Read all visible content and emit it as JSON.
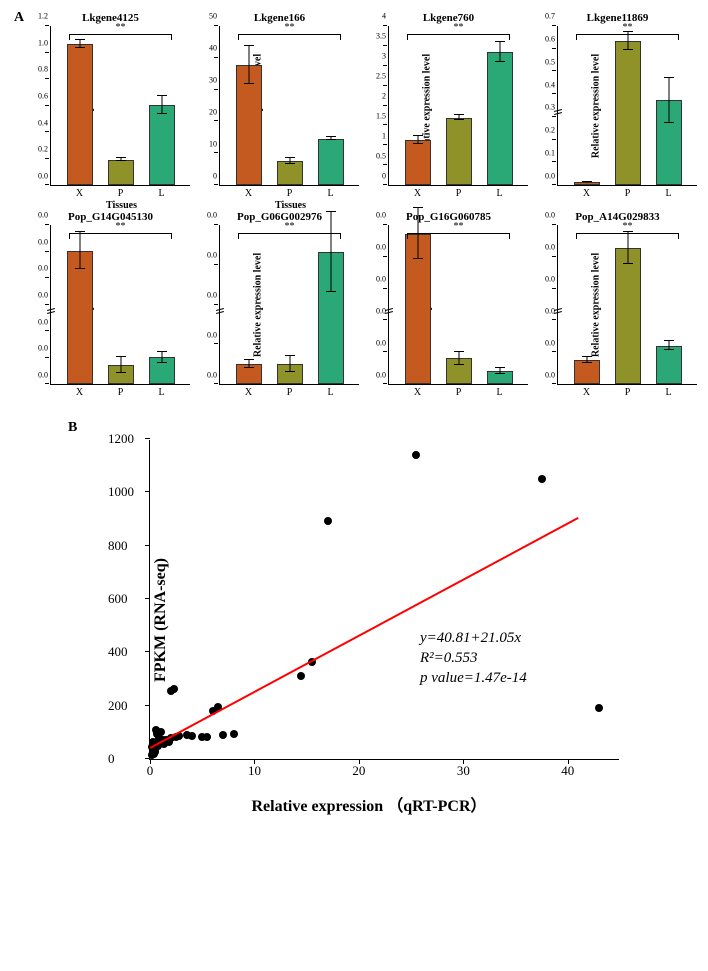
{
  "panelA": {
    "label": "A",
    "ylabel": "Relative expression level",
    "xlabel": "Tissues",
    "categories": [
      "X",
      "P",
      "L"
    ],
    "colors": {
      "X": "#c45a1f",
      "P": "#8f9228",
      "L": "#2aa876"
    },
    "sig_marker": "**",
    "charts": [
      {
        "title": "Lkgene4125",
        "vals": [
          1.06,
          0.19,
          0.6
        ],
        "errs": [
          0.03,
          0.01,
          0.07
        ],
        "ymax": 1.2,
        "ystep": 0.2,
        "show_xlabel": true
      },
      {
        "title": "Lkgene166",
        "vals": [
          37.5,
          7.5,
          14.5
        ],
        "errs": [
          6.0,
          0.8,
          0.5
        ],
        "ymax": 50,
        "ystep": 10,
        "show_xlabel": true
      },
      {
        "title": "Lkgene760",
        "vals": [
          1.12,
          1.68,
          3.32
        ],
        "errs": [
          0.1,
          0.06,
          0.25
        ],
        "ymax": 4.0,
        "ystep": 0.5,
        "show_xlabel": false
      },
      {
        "title": "Lkgene11869",
        "vals": [
          0.014,
          0.63,
          0.37
        ],
        "errs": [
          0.001,
          0.04,
          0.1
        ],
        "ymax": 0.7,
        "ystep": 0.1,
        "show_xlabel": false,
        "broken": true
      },
      {
        "title": "Pop_G14G045130",
        "vals": [
          0.0005,
          7e-05,
          0.0001
        ],
        "errs": [
          7e-05,
          3e-05,
          2e-05
        ],
        "ymax": 0.0006,
        "ystep": 0.0001,
        "show_xlabel": false,
        "broken": true
      },
      {
        "title": "Pop_G06G002976",
        "vals": [
          5e-05,
          5e-05,
          0.00033
        ],
        "errs": [
          1e-05,
          2e-05,
          0.0001
        ],
        "ymax": 0.0004,
        "ystep": 0.0001,
        "show_xlabel": false,
        "broken": true
      },
      {
        "title": "Pop_G16G060785",
        "vals": [
          0.00047,
          8e-05,
          4e-05
        ],
        "errs": [
          8e-05,
          2e-05,
          1e-05
        ],
        "ymax": 0.0005,
        "ystep": 0.0001,
        "show_xlabel": false,
        "broken": true
      },
      {
        "title": "Pop_A14G029833",
        "vals": [
          0.00015,
          0.00085,
          0.00024
        ],
        "errs": [
          2e-05,
          0.0001,
          3e-05
        ],
        "ymax": 0.001,
        "ystep": 0.0002,
        "show_xlabel": false,
        "broken": true
      }
    ]
  },
  "panelB": {
    "label": "B",
    "xlabel": "Relative expression （qRT-PCR）",
    "ylabel": "FPKM (RNA-seq)",
    "xlim": [
      0,
      45
    ],
    "xtick_step": 10,
    "ylim": [
      0,
      1200
    ],
    "ytick_step": 200,
    "fit": {
      "slope": 21.05,
      "intercept": 40.81,
      "color": "#ff0000"
    },
    "equation": "y=40.81+21.05x",
    "r2": "R²=0.553",
    "pval_label": "p value=1.47e-14",
    "points": [
      [
        0.2,
        15
      ],
      [
        0.3,
        22
      ],
      [
        0.5,
        30
      ],
      [
        0.4,
        40
      ],
      [
        0.6,
        55
      ],
      [
        0.8,
        50
      ],
      [
        1.0,
        60
      ],
      [
        1.2,
        70
      ],
      [
        0.9,
        80
      ],
      [
        1.5,
        72
      ],
      [
        0.7,
        92
      ],
      [
        1.1,
        100
      ],
      [
        0.6,
        110
      ],
      [
        0.3,
        65
      ],
      [
        0.2,
        45
      ],
      [
        0.5,
        25
      ],
      [
        0.4,
        18
      ],
      [
        1.3,
        58
      ],
      [
        1.8,
        65
      ],
      [
        2.0,
        78
      ],
      [
        2.5,
        82
      ],
      [
        2.0,
        255
      ],
      [
        2.3,
        262
      ],
      [
        2.8,
        88
      ],
      [
        3.5,
        90
      ],
      [
        4.0,
        85
      ],
      [
        5.0,
        84
      ],
      [
        5.5,
        82
      ],
      [
        6.0,
        180
      ],
      [
        6.5,
        195
      ],
      [
        7.0,
        90
      ],
      [
        8.0,
        95
      ],
      [
        14.5,
        310
      ],
      [
        15.5,
        362
      ],
      [
        17.0,
        892
      ],
      [
        25.5,
        1140
      ],
      [
        37.5,
        1050
      ],
      [
        43.0,
        190
      ]
    ]
  },
  "style": {
    "background": "#ffffff",
    "axis_color": "#000000",
    "text_color": "#000000",
    "title_fontsize": 11,
    "label_fontsize": 10,
    "tick_fontsize": 8
  }
}
